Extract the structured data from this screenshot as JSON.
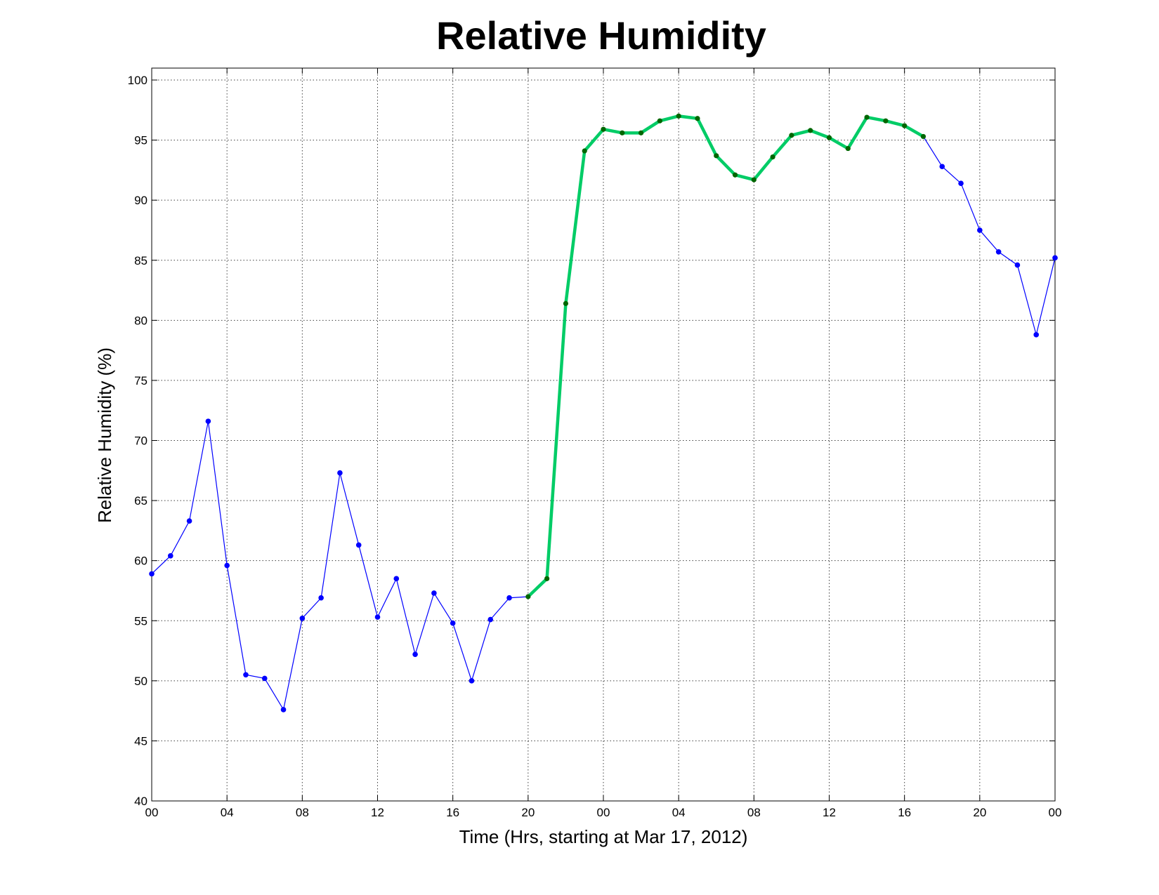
{
  "chart_data": {
    "type": "line",
    "title": "Relative Humidity",
    "xlabel": "Time (Hrs, starting at Mar 17, 2012)",
    "ylabel": "Relative Humidity (%)",
    "xlim": [
      0,
      48
    ],
    "ylim": [
      40,
      100
    ],
    "yticks": [
      40,
      45,
      50,
      55,
      60,
      65,
      70,
      75,
      80,
      85,
      90,
      95,
      100
    ],
    "xticks": [
      0,
      4,
      8,
      12,
      16,
      20,
      24,
      28,
      32,
      36,
      40,
      44,
      48
    ],
    "xtick_labels": [
      "00",
      "04",
      "08",
      "12",
      "16",
      "20",
      "00",
      "04",
      "08",
      "12",
      "16",
      "20",
      "00"
    ],
    "grid": true,
    "colors": {
      "series": "#0000ff",
      "highlight": "#00cc66",
      "highlight_marker": "#006600"
    },
    "series": [
      {
        "x": [
          0,
          1,
          2,
          3,
          4,
          5,
          6,
          7,
          8,
          9,
          10,
          11,
          12,
          13,
          14,
          15,
          16,
          17,
          18,
          19,
          20,
          21,
          22,
          23,
          24,
          25,
          26,
          27,
          28,
          29,
          30,
          31,
          32,
          33,
          34,
          35,
          36,
          37,
          38,
          39,
          40,
          41,
          42,
          43,
          44,
          45,
          46,
          47,
          48
        ],
        "values": [
          58.9,
          60.4,
          63.3,
          71.6,
          59.6,
          50.5,
          50.2,
          47.6,
          55.2,
          56.9,
          67.3,
          61.3,
          55.3,
          58.5,
          52.2,
          57.3,
          54.8,
          50.0,
          55.1,
          56.9,
          57.0,
          58.5,
          81.4,
          94.1,
          95.9,
          95.6,
          95.6,
          96.6,
          97.0,
          96.8,
          93.7,
          92.1,
          91.7,
          93.6,
          95.4,
          95.8,
          95.2,
          94.3,
          96.9,
          96.6,
          96.2,
          95.3,
          92.8,
          91.4,
          87.5,
          85.7,
          84.6,
          78.8,
          85.2
        ],
        "highlight_range": [
          20,
          41
        ]
      }
    ]
  }
}
